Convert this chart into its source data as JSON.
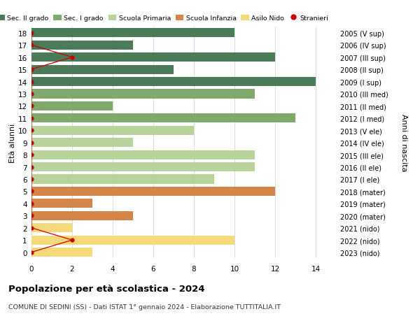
{
  "ages": [
    18,
    17,
    16,
    15,
    14,
    13,
    12,
    11,
    10,
    9,
    8,
    7,
    6,
    5,
    4,
    3,
    2,
    1,
    0
  ],
  "right_labels": [
    "2005 (V sup)",
    "2006 (IV sup)",
    "2007 (III sup)",
    "2008 (II sup)",
    "2009 (I sup)",
    "2010 (III med)",
    "2011 (II med)",
    "2012 (I med)",
    "2013 (V ele)",
    "2014 (IV ele)",
    "2015 (III ele)",
    "2016 (II ele)",
    "2017 (I ele)",
    "2018 (mater)",
    "2019 (mater)",
    "2020 (mater)",
    "2021 (nido)",
    "2022 (nido)",
    "2023 (nido)"
  ],
  "bar_values": [
    10,
    5,
    12,
    7,
    14,
    11,
    4,
    13,
    8,
    5,
    11,
    11,
    9,
    12,
    3,
    5,
    2,
    10,
    3
  ],
  "bar_colors": [
    "#4a7c59",
    "#4a7c59",
    "#4a7c59",
    "#4a7c59",
    "#4a7c59",
    "#7faa6b",
    "#7faa6b",
    "#7faa6b",
    "#b8d49a",
    "#b8d49a",
    "#b8d49a",
    "#b8d49a",
    "#b8d49a",
    "#d4864a",
    "#d4864a",
    "#d4864a",
    "#f5d97a",
    "#f5d97a",
    "#f5d97a"
  ],
  "stranieri_values": [
    0,
    0,
    2,
    0,
    0,
    0,
    0,
    0,
    0,
    0,
    0,
    0,
    0,
    0,
    0,
    0,
    0,
    2,
    0
  ],
  "stranieri_color": "#cc0000",
  "legend_colors": [
    "#4a7c59",
    "#7faa6b",
    "#b8d49a",
    "#d4864a",
    "#f5d97a",
    "#cc0000"
  ],
  "legend_labels": [
    "Sec. II grado",
    "Sec. I grado",
    "Scuola Primaria",
    "Scuola Infanzia",
    "Asilo Nido",
    "Stranieri"
  ],
  "ylabel": "Età alunni",
  "right_ylabel": "Anni di nascita",
  "title": "Popolazione per età scolastica - 2024",
  "subtitle": "COMUNE DI SEDINI (SS) - Dati ISTAT 1° gennaio 2024 - Elaborazione TUTTITALIA.IT",
  "xlim": [
    0,
    15
  ],
  "xticks": [
    0,
    2,
    4,
    6,
    8,
    10,
    12,
    14
  ],
  "bg_color": "#ffffff",
  "grid_color": "#cccccc",
  "ylim_bottom": -0.5,
  "ylim_top": 18.5
}
